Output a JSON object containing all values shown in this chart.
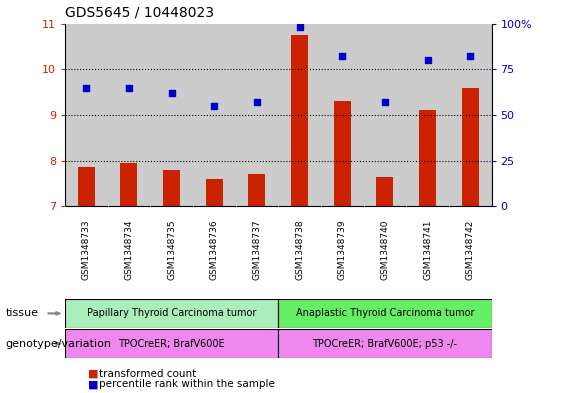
{
  "title": "GDS5645 / 10448023",
  "samples": [
    "GSM1348733",
    "GSM1348734",
    "GSM1348735",
    "GSM1348736",
    "GSM1348737",
    "GSM1348738",
    "GSM1348739",
    "GSM1348740",
    "GSM1348741",
    "GSM1348742"
  ],
  "transformed_count": [
    7.85,
    7.95,
    7.8,
    7.6,
    7.7,
    10.75,
    9.3,
    7.65,
    9.1,
    9.6
  ],
  "percentile_rank": [
    65,
    65,
    62,
    55,
    57,
    98,
    82,
    57,
    80,
    82
  ],
  "ylim_left": [
    7,
    11
  ],
  "ylim_right": [
    0,
    100
  ],
  "yticks_left": [
    7,
    8,
    9,
    10,
    11
  ],
  "yticks_right": [
    0,
    25,
    50,
    75,
    100
  ],
  "ytick_right_labels": [
    "0",
    "25",
    "50",
    "75",
    "100%"
  ],
  "bar_color": "#cc2200",
  "scatter_color": "#0000cc",
  "bar_bottom": 7,
  "tissue_group1": "Papillary Thyroid Carcinoma tumor",
  "tissue_group2": "Anaplastic Thyroid Carcinoma tumor",
  "genotype_group1": "TPOCreER; BrafV600E",
  "genotype_group2": "TPOCreER; BrafV600E; p53 -/-",
  "tissue_color1": "#aaeebb",
  "tissue_color2": "#66ee66",
  "genotype_color": "#ee88ee",
  "label_tissue": "tissue",
  "label_genotype": "genotype/variation",
  "legend_bar": "transformed count",
  "legend_scatter": "percentile rank within the sample",
  "n_group1": 5,
  "n_group2": 5,
  "xbg_color": "#cccccc",
  "plot_bg": "#ffffff",
  "fig_bg": "#ffffff"
}
